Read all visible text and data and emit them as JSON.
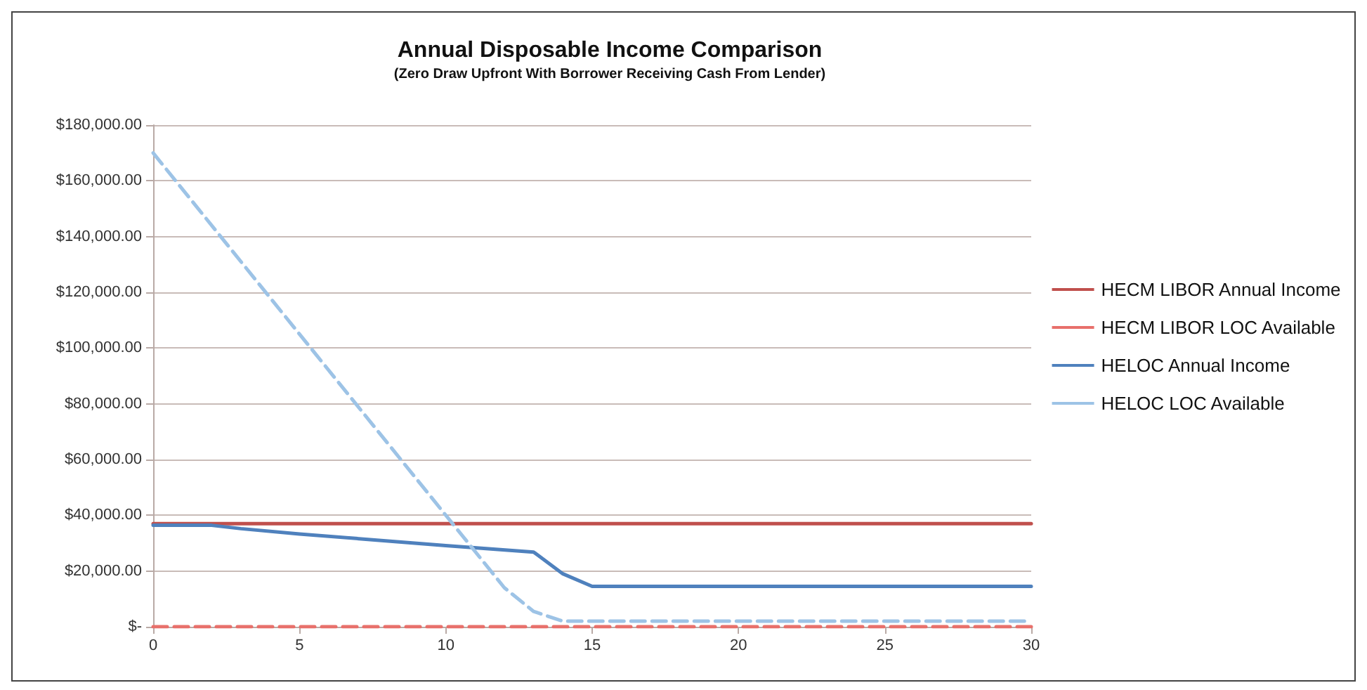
{
  "chart_data": {
    "type": "line",
    "title": "Annual Disposable Income Comparison",
    "subtitle": "(Zero Draw Upfront With Borrower Receiving Cash From Lender)",
    "series": [
      {
        "name": "HECM LIBOR Annual Income",
        "color": "#c0504d",
        "line_style": "solid",
        "x": [
          0,
          30
        ],
        "values": [
          37000,
          37000
        ]
      },
      {
        "name": "HECM LIBOR LOC Available",
        "color": "#e8706b",
        "line_style": "dashed",
        "x": [
          0,
          30
        ],
        "values": [
          0,
          0
        ]
      },
      {
        "name": "HELOC Annual Income",
        "color": "#4f81bd",
        "line_style": "solid",
        "x": [
          0,
          2,
          3,
          5,
          10,
          13,
          14,
          15,
          30
        ],
        "values": [
          36400,
          36400,
          35200,
          33300,
          29100,
          26800,
          19000,
          14500,
          14500
        ]
      },
      {
        "name": "HELOC LOC Available",
        "color": "#9dc3e6",
        "line_style": "dashed",
        "x": [
          0,
          12,
          13,
          14,
          30
        ],
        "values": [
          170000,
          14000,
          5500,
          2000,
          2000
        ]
      }
    ],
    "xlim": [
      0,
      30
    ],
    "xticks": [
      0,
      5,
      10,
      15,
      20,
      25,
      30
    ],
    "ylim": [
      0,
      180000
    ],
    "yticks": [
      {
        "value": 0,
        "label": "$-"
      },
      {
        "value": 20000,
        "label": "$20,000.00"
      },
      {
        "value": 40000,
        "label": "$40,000.00"
      },
      {
        "value": 60000,
        "label": "$60,000.00"
      },
      {
        "value": 80000,
        "label": "$80,000.00"
      },
      {
        "value": 100000,
        "label": "$100,000.00"
      },
      {
        "value": 120000,
        "label": "$120,000.00"
      },
      {
        "value": 140000,
        "label": "$140,000.00"
      },
      {
        "value": 160000,
        "label": "$160,000.00"
      },
      {
        "value": 180000,
        "label": "$180,000.00"
      }
    ],
    "grid": "y",
    "legend": "right",
    "marker": "none"
  }
}
